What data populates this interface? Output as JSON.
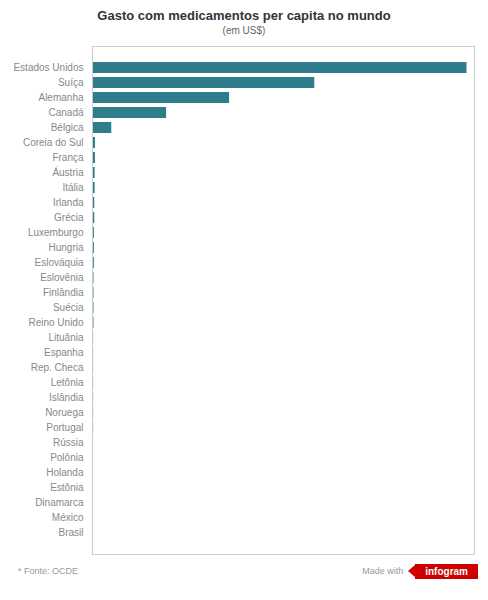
{
  "chart_data": {
    "type": "bar",
    "orientation": "horizontal",
    "title": "Gasto com medicamentos per capita no mundo",
    "subtitle": "(em US$)",
    "footnote": "* Fonte: OCDE",
    "annotations": [
      "Made with",
      "infogram"
    ],
    "categories": [
      "Estados Unidos",
      "Suíça",
      "Alemanha",
      "Canadá",
      "Bélgica",
      "Coreia do Sul",
      "França",
      "Áustria",
      "Itália",
      "Irlanda",
      "Grécia",
      "Luxemburgo",
      "Hungria",
      "Eslováquia",
      "Eslovênia",
      "Finlândia",
      "Suécia",
      "Reino Unido",
      "Lituânia",
      "Espanha",
      "Rep. Checa",
      "Letônia",
      "Islândia",
      "Noruega",
      "Portugal",
      "Rússia",
      "Polônia",
      "Holanda",
      "Estônia",
      "Dinamarca",
      "México",
      "Brasil"
    ],
    "values": [
      1011,
      600,
      370,
      200,
      52,
      8,
      8,
      7,
      7,
      6,
      6,
      5,
      5,
      5,
      4,
      4,
      4,
      4,
      3,
      3,
      3,
      3,
      3,
      3,
      3,
      2,
      2,
      2,
      2,
      2,
      1,
      1
    ],
    "color": "#2e7d8c",
    "xlim": [
      0,
      1031.22
    ],
    "tick_labels": "y",
    "grid": false
  }
}
